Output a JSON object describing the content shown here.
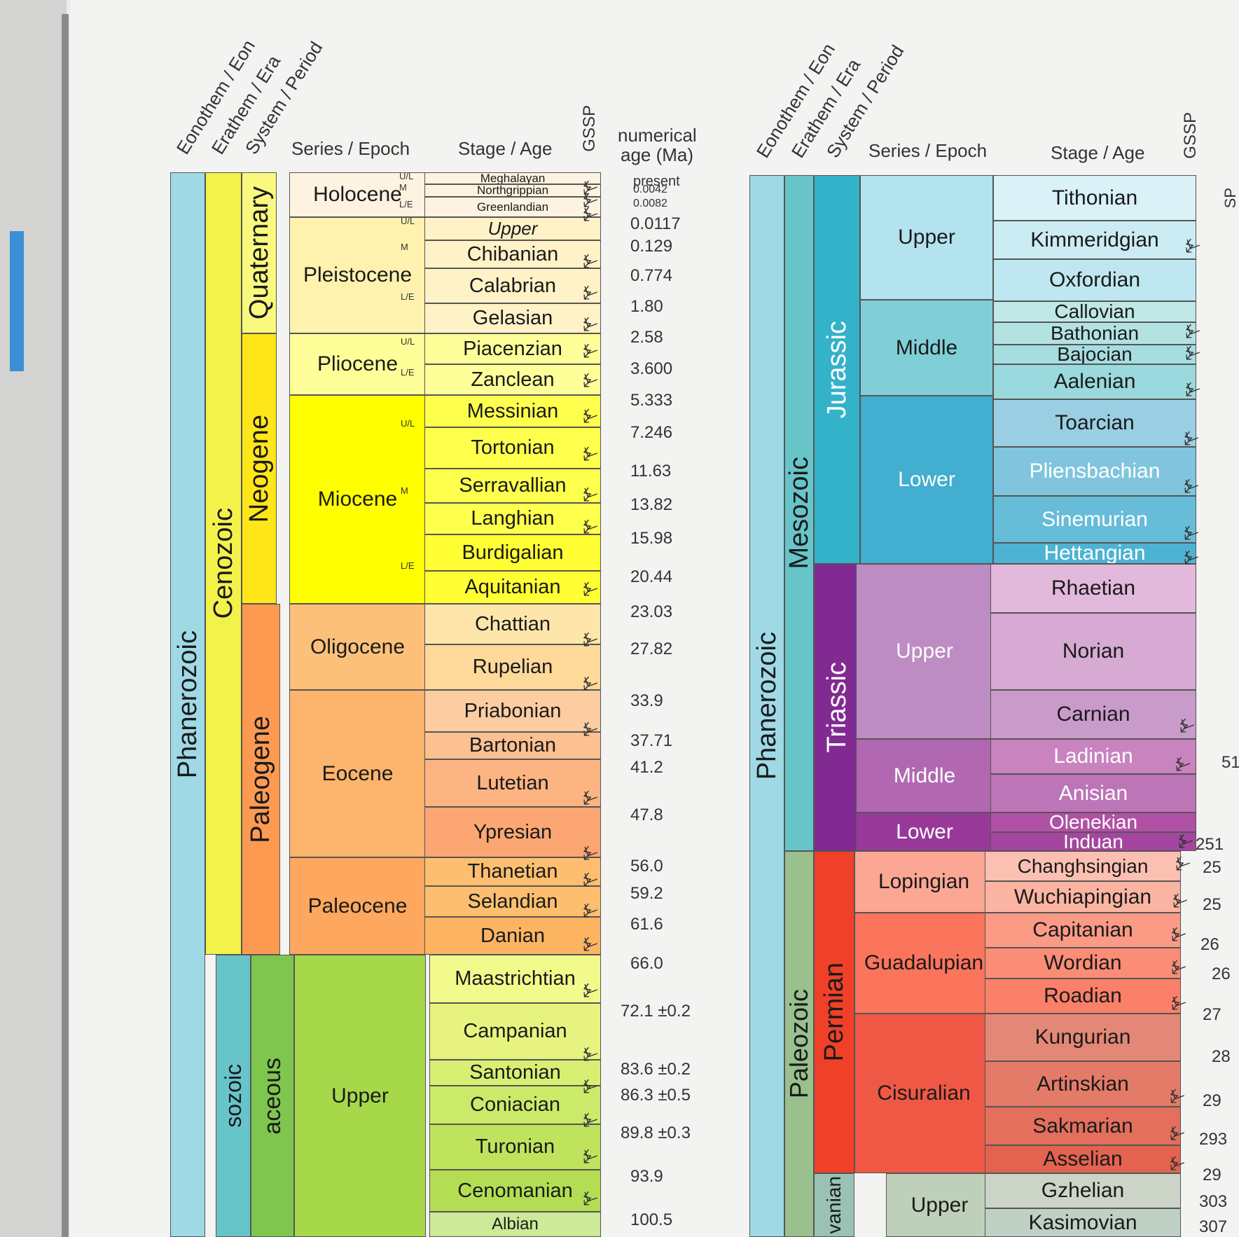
{
  "left_chart": {
    "headers": {
      "eon": "Eonothem / Eon",
      "era": "Erathem / Era",
      "period": "System / Period",
      "epoch": "Series / Epoch",
      "stage": "Stage / Age",
      "gssp": "GSSP",
      "numerical_line1": "numerical",
      "numerical_line2": "age (Ma)"
    },
    "eons": [
      "Phanerozoic"
    ],
    "eras": [
      "Cenozoic",
      "sozoic"
    ],
    "periods": [
      "Quaternary",
      "Neogene",
      "Paleogene",
      "aceous"
    ],
    "epochs": [
      "Holocene",
      "Pleistocene",
      "Pliocene",
      "Miocene",
      "Oligocene",
      "Eocene",
      "Paleocene",
      "Upper"
    ],
    "stages": [
      "Meghalayan",
      "Northgrippian",
      "Greenlandian",
      "Upper",
      "Chibanian",
      "Calabrian",
      "Gelasian",
      "Piacenzian",
      "Zanclean",
      "Messinian",
      "Tortonian",
      "Serravallian",
      "Langhian",
      "Burdigalian",
      "Aquitanian",
      "Chattian",
      "Rupelian",
      "Priabonian",
      "Bartonian",
      "Lutetian",
      "Ypresian",
      "Thanetian",
      "Selandian",
      "Danian",
      "Maastrichtian",
      "Campanian",
      "Santonian",
      "Coniacian",
      "Turonian",
      "Cenomanian",
      "Albian"
    ],
    "subepoch_tags": [
      "U/L",
      "M",
      "L/E",
      "U/L",
      "M",
      "L/E",
      "U/L",
      "L/E",
      "U/L",
      "M",
      "L/E"
    ],
    "ages": [
      "present",
      "0.0042",
      "0.0082",
      "0.0117",
      "0.129",
      "0.774",
      "1.80",
      "2.58",
      "3.600",
      "5.333",
      "7.246",
      "11.63",
      "13.82",
      "15.98",
      "20.44",
      "23.03",
      "27.82",
      "33.9",
      "37.71",
      "41.2",
      "47.8",
      "56.0",
      "59.2",
      "61.6",
      "66.0",
      "72.1 ±0.2",
      "83.6 ±0.2",
      "86.3 ±0.5",
      "89.8 ±0.3",
      "93.9",
      "100.5"
    ],
    "gssp_symbol": "⍼"
  },
  "right_chart": {
    "headers": {
      "eon": "Eonothem / Eon",
      "era": "Erathem / Era",
      "period": "System / Period",
      "epoch": "Series / Epoch",
      "stage": "Stage / Age",
      "gssp": "GSSP",
      "edge": "SP"
    },
    "eons": [
      "Phanerozoic"
    ],
    "eras": [
      "Mesozoic",
      "Paleozoic"
    ],
    "periods": [
      "Jurassic",
      "Triassic",
      "Permian",
      "vanian"
    ],
    "epochs": [
      "Upper",
      "Middle",
      "Lower",
      "Upper",
      "Middle",
      "Lower",
      "Lopingian",
      "Guadalupian",
      "Cisuralian",
      "Upper"
    ],
    "stages": [
      "Tithonian",
      "Kimmeridgian",
      "Oxfordian",
      "Callovian",
      "Bathonian",
      "Bajocian",
      "Aalenian",
      "Toarcian",
      "Pliensbachian",
      "Sinemurian",
      "Hettangian",
      "Rhaetian",
      "Norian",
      "Carnian",
      "Ladinian",
      "Anisian",
      "Olenekian",
      "Induan",
      "Changhsingian",
      "Wuchiapingian",
      "Capitanian",
      "Wordian",
      "Roadian",
      "Kungurian",
      "Artinskian",
      "Sakmarian",
      "Asselian",
      "Gzhelian",
      "Kasimovian"
    ],
    "edge_ages": [
      "51",
      "251",
      "25",
      "25",
      "26",
      "26",
      "27",
      "28",
      "29",
      "293",
      "29",
      "303",
      "307"
    ]
  }
}
